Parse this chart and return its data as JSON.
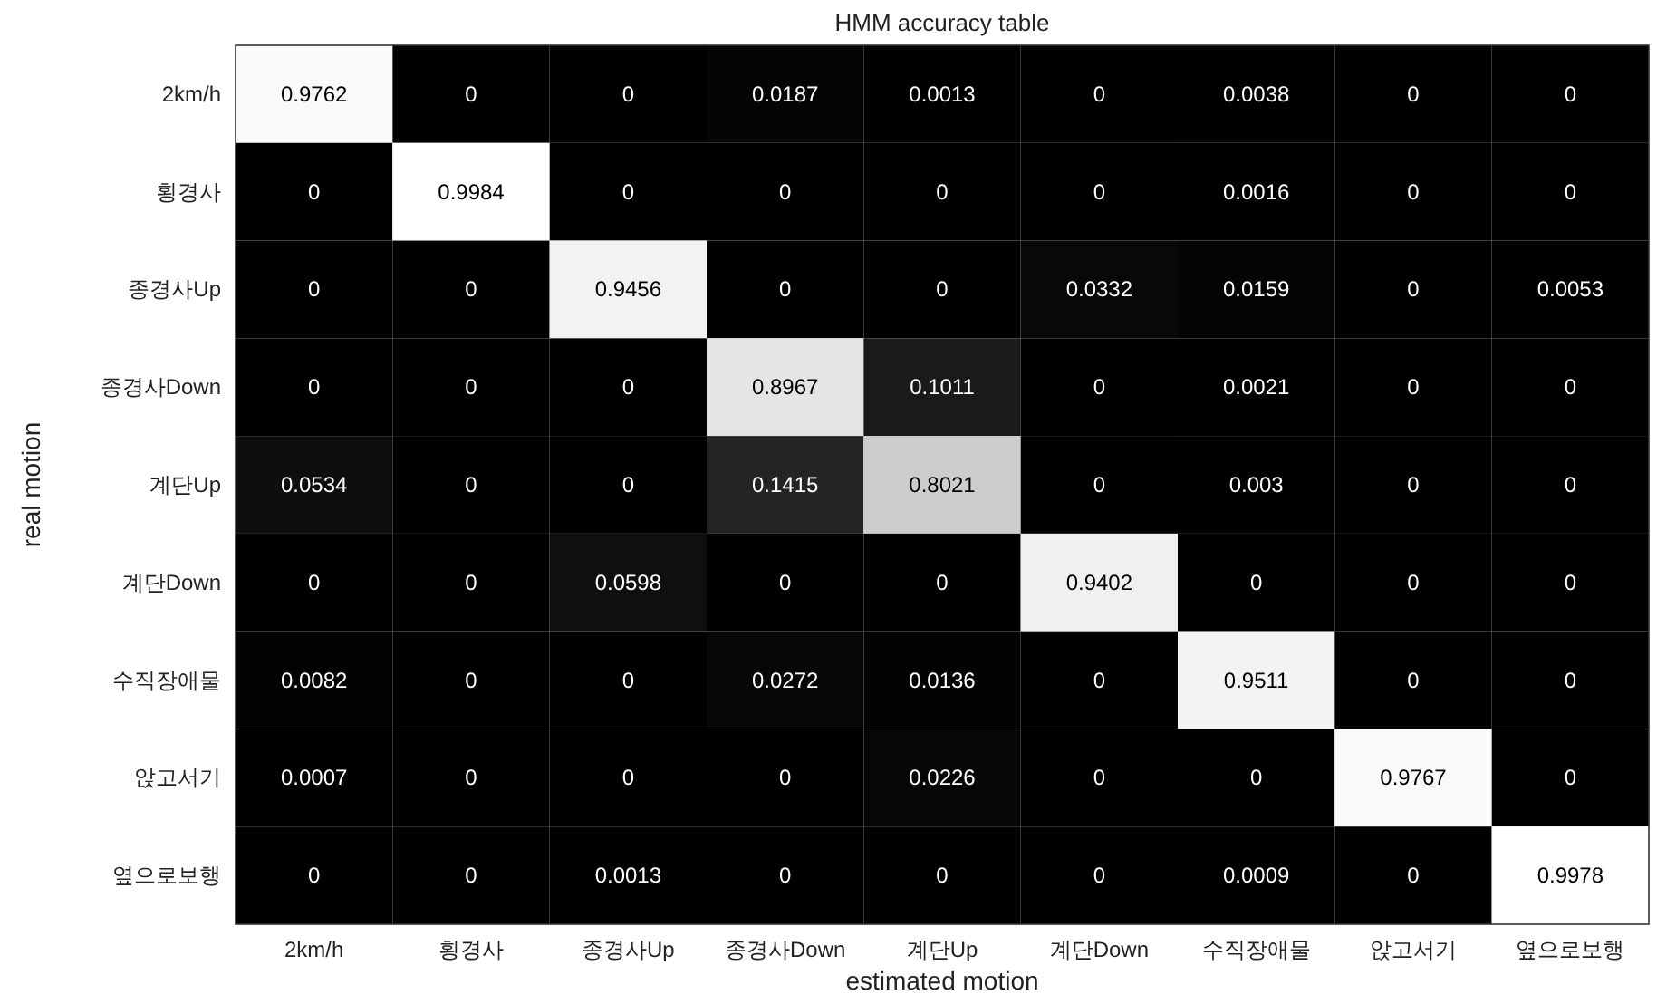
{
  "chart_data": {
    "type": "heatmap",
    "title": "HMM accuracy table",
    "xlabel": "estimated motion",
    "ylabel": "real motion",
    "categories": [
      "2km/h",
      "횡경사",
      "종경사Up",
      "종경사Down",
      "계단Up",
      "계단Down",
      "수직장애물",
      "앉고서기",
      "옆으로보행"
    ],
    "y_categories": [
      "2km/h",
      "횡경사",
      "종경사Up",
      "종경사Down",
      "계단Up",
      "계단Down",
      "수직장애물",
      "앉고서기",
      "옆으로보행"
    ],
    "data_labels": true,
    "cells": [
      [
        0.9762,
        0,
        0,
        0.0187,
        0.0013,
        0,
        0.0038,
        0,
        0
      ],
      [
        0,
        0.9984,
        0,
        0,
        0,
        0,
        0.0016,
        0,
        0
      ],
      [
        0,
        0,
        0.9456,
        0,
        0,
        0.0332,
        0.0159,
        0,
        0.0053
      ],
      [
        0,
        0,
        0,
        0.8967,
        0.1011,
        0,
        0.0021,
        0,
        0
      ],
      [
        0.0534,
        0,
        0,
        0.1415,
        0.8021,
        0,
        0.003,
        0,
        0
      ],
      [
        0,
        0,
        0.0598,
        0,
        0,
        0.9402,
        0,
        0,
        0
      ],
      [
        0.0082,
        0,
        0,
        0.0272,
        0.0136,
        0,
        0.9511,
        0,
        0
      ],
      [
        0.0007,
        0,
        0,
        0,
        0.0226,
        0,
        0,
        0.9767,
        0
      ],
      [
        0,
        0,
        0.0013,
        0,
        0,
        0,
        0.0009,
        0,
        0.9978
      ]
    ]
  }
}
